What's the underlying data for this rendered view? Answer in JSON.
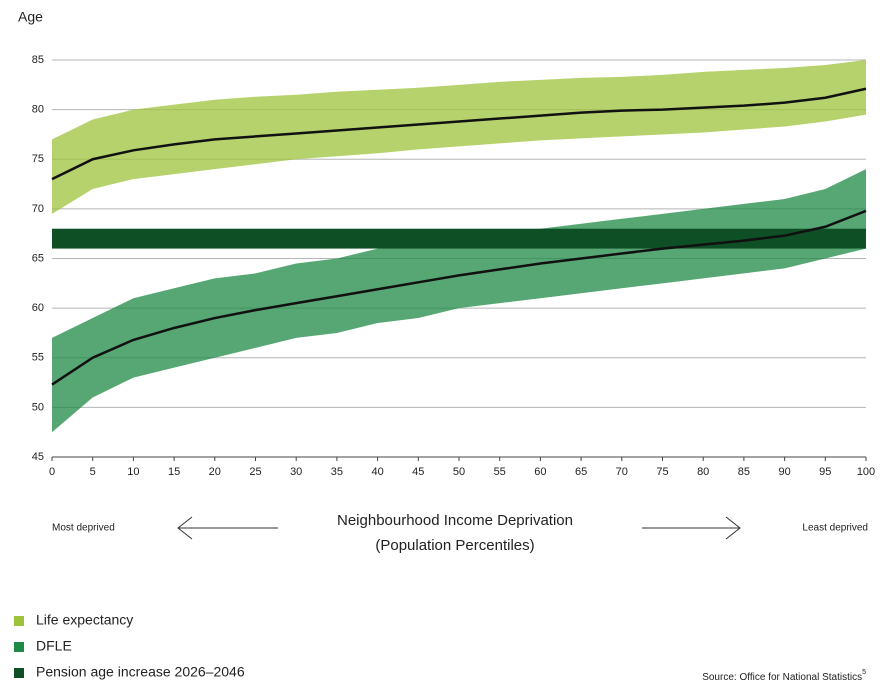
{
  "chart_data": {
    "type": "scatter",
    "ylabel": "Age",
    "x": [
      0,
      5,
      10,
      15,
      20,
      25,
      30,
      35,
      40,
      45,
      50,
      55,
      60,
      65,
      70,
      75,
      80,
      85,
      90,
      95,
      100
    ],
    "xlim": [
      0,
      100
    ],
    "xticks": [
      0,
      5,
      10,
      15,
      20,
      25,
      30,
      35,
      40,
      45,
      50,
      55,
      60,
      65,
      70,
      75,
      80,
      85,
      90,
      95,
      100
    ],
    "ylim": [
      45,
      85
    ],
    "yticks": [
      45,
      50,
      55,
      60,
      65,
      70,
      75,
      80,
      85
    ],
    "grid": true,
    "trend_color": "#111111",
    "series": [
      {
        "name": "Life expectancy",
        "color": "#9dc33b",
        "values": [
          73,
          75,
          75.9,
          76.5,
          77,
          77.3,
          77.6,
          77.9,
          78.2,
          78.5,
          78.8,
          79.1,
          79.4,
          79.7,
          79.9,
          80,
          80.2,
          80.4,
          80.7,
          81.2,
          82.1
        ],
        "low": [
          69.5,
          72,
          73,
          73.5,
          74,
          74.5,
          75,
          75.3,
          75.6,
          76,
          76.3,
          76.6,
          76.9,
          77.1,
          77.3,
          77.5,
          77.7,
          78,
          78.3,
          78.8,
          79.5
        ],
        "high": [
          77,
          79,
          80,
          80.5,
          81,
          81.3,
          81.5,
          81.8,
          82,
          82.2,
          82.5,
          82.8,
          83,
          83.2,
          83.3,
          83.5,
          83.8,
          84,
          84.2,
          84.5,
          85
        ]
      },
      {
        "name": "DFLE",
        "color": "#1f8a47",
        "values": [
          52.3,
          55,
          56.8,
          58,
          59,
          59.8,
          60.5,
          61.2,
          61.9,
          62.6,
          63.3,
          63.9,
          64.5,
          65,
          65.5,
          66,
          66.4,
          66.8,
          67.3,
          68.2,
          69.8
        ],
        "low": [
          47.5,
          51,
          53,
          54,
          55,
          56,
          57,
          57.5,
          58.5,
          59,
          60,
          60.5,
          61,
          61.5,
          62,
          62.5,
          63,
          63.5,
          64,
          65,
          66
        ],
        "high": [
          57,
          59,
          61,
          62,
          63,
          63.5,
          64.5,
          65,
          66,
          66.5,
          67,
          67.5,
          68,
          68.5,
          69,
          69.5,
          70,
          70.5,
          71,
          72,
          74
        ]
      }
    ],
    "band": {
      "name": "Pension age increase 2026–2046",
      "color": "#0f4f25",
      "low": 66,
      "high": 68
    },
    "annotations": {
      "left": "Most deprived",
      "center_line1": "Neighbourhood Income Deprivation",
      "center_line2": "(Population Percentiles)",
      "right": "Least deprived"
    },
    "source": "Source: Office for National Statistics",
    "source_note": "5"
  }
}
